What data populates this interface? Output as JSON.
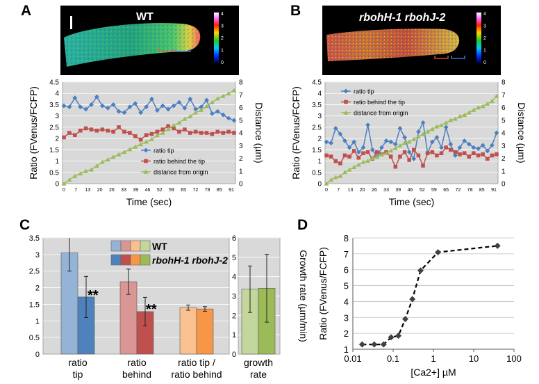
{
  "panels": {
    "A": {
      "letter": "A",
      "image_label": "WT",
      "colorbar_ticks": [
        "4",
        "3",
        "2",
        "1",
        "0"
      ]
    },
    "B": {
      "letter": "B",
      "image_label": "rbohH-1 rbohJ-2",
      "colorbar_ticks": [
        "4",
        "3",
        "2",
        "1",
        "0"
      ]
    },
    "C": {
      "letter": "C"
    },
    "D": {
      "letter": "D"
    }
  },
  "colors": {
    "ratio_tip": "#4a7fc1",
    "ratio_behind": "#c0504d",
    "distance": "#9bbb59",
    "plot_bg": "#d9d9d9",
    "c_wt_tip": "#95b3d7",
    "c_mut_tip": "#4f81bd",
    "c_wt_behind": "#d99694",
    "c_mut_behind": "#c0504d",
    "c_wt_ratio": "#fac090",
    "c_mut_ratio": "#f79646",
    "c_wt_growth": "#c3d69b",
    "c_mut_growth": "#9bbb59"
  },
  "chart_data": [
    {
      "id": "A",
      "type": "line",
      "title": "WT",
      "xlabel": "Time (sec)",
      "ylabel": "Ratio (FVenus/FCFP)",
      "y2label": "Distance (µm)",
      "ylim": [
        0,
        4.5
      ],
      "y2lim": [
        0,
        8
      ],
      "x_ticks": [
        0,
        7,
        13,
        20,
        26,
        33,
        39,
        46,
        52,
        59,
        65,
        72,
        78,
        85,
        91
      ],
      "y_ticks": [
        0,
        0.5,
        1,
        1.5,
        2,
        2.5,
        3,
        3.5,
        4,
        4.5
      ],
      "y_tick_labels": [
        "0",
        "0.5",
        "1",
        "1.5",
        "2",
        "2.5",
        "3",
        "3.5",
        "4",
        "4.5"
      ],
      "y2_ticks": [
        0,
        1,
        2,
        3,
        4,
        5,
        6,
        7,
        8
      ],
      "y2_tick_labels": [
        "0",
        "1",
        "2",
        "3",
        "4",
        "5",
        "6",
        "7",
        "8"
      ],
      "series": [
        {
          "name": "ratio tip",
          "axis": "left",
          "marker": "diamond",
          "values": [
            3.45,
            3.4,
            3.8,
            3.4,
            3.3,
            3.5,
            3.85,
            3.45,
            3.35,
            3.5,
            3.2,
            3.15,
            3.4,
            3.55,
            3.15,
            3.4,
            3.75,
            3.25,
            3.45,
            3.3,
            3.45,
            3.6,
            3.35,
            3.75,
            3.3,
            3.4,
            3.7,
            3.1,
            3.2,
            3.05,
            2.9,
            2.8
          ]
        },
        {
          "name": "ratio behind the tip",
          "axis": "left",
          "marker": "square",
          "values": [
            2.05,
            2.25,
            2.15,
            2.35,
            2.45,
            2.4,
            2.35,
            2.4,
            2.35,
            2.3,
            2.5,
            2.3,
            2.25,
            2.1,
            1.95,
            2.15,
            2.2,
            2.3,
            2.4,
            2.55,
            2.45,
            2.3,
            2.4,
            2.25,
            2.3,
            2.25,
            2.25,
            2.2,
            2.3,
            2.25,
            2.3,
            2.25
          ]
        },
        {
          "name": "distance from origin",
          "axis": "right",
          "marker": "triangle",
          "values": [
            0,
            0.3,
            0.6,
            0.8,
            1.0,
            1.1,
            1.4,
            1.7,
            1.9,
            2.1,
            2.3,
            2.5,
            2.7,
            2.9,
            3.1,
            3.3,
            3.5,
            3.8,
            4.0,
            4.3,
            4.6,
            4.8,
            5.1,
            5.3,
            5.6,
            5.8,
            6.1,
            6.4,
            6.7,
            6.9,
            7.1,
            7.35
          ]
        }
      ]
    },
    {
      "id": "B",
      "type": "line",
      "title": "rbohH-1 rbohJ-2",
      "xlabel": "Time (sec)",
      "ylabel": "Ratio (FVenus/FCFP)",
      "y2label": "Distance (µm)",
      "ylim": [
        0,
        4.5
      ],
      "y2lim": [
        0,
        8
      ],
      "x_ticks": [
        0,
        7,
        13,
        20,
        26,
        33,
        39,
        46,
        52,
        59,
        65,
        72,
        78,
        85,
        91
      ],
      "y_ticks": [
        0,
        0.5,
        1,
        1.5,
        2,
        2.5,
        3,
        3.5,
        4,
        4.5
      ],
      "y_tick_labels": [
        "0",
        "0.5",
        "1",
        "1.5",
        "2",
        "2.5",
        "3",
        "3.5",
        "4",
        "4.5"
      ],
      "y2_ticks": [
        0,
        1,
        2,
        3,
        4,
        5,
        6,
        7,
        8
      ],
      "y2_tick_labels": [
        "0",
        "1",
        "2",
        "3",
        "4",
        "5",
        "6",
        "7",
        "8"
      ],
      "series": [
        {
          "name": "ratio tip",
          "axis": "left",
          "marker": "diamond",
          "values": [
            1.85,
            1.8,
            2.45,
            2.2,
            1.9,
            1.6,
            1.85,
            1.4,
            1.6,
            2.6,
            1.5,
            1.2,
            1.6,
            1.9,
            1.85,
            1.75,
            2.45,
            2.05,
            1.4,
            1.1,
            2.3,
            2.7,
            1.35,
            1.85,
            2.05,
            1.6,
            2.5,
            1.75,
            1.25,
            1.6,
            1.9,
            1.75,
            1.6,
            1.55,
            1.7,
            1.45,
            1.7,
            2.25
          ]
        },
        {
          "name": "ratio behind the tip",
          "axis": "left",
          "marker": "square",
          "values": [
            1.25,
            1.2,
            1.0,
            0.9,
            1.25,
            1.2,
            1.45,
            1.15,
            1.35,
            1.4,
            1.1,
            1.4,
            1.3,
            1.4,
            1.2,
            0.75,
            1.2,
            1.4,
            1.05,
            1.5,
            1.25,
            0.8,
            1.35,
            1.4,
            1.25,
            1.35,
            1.6,
            1.5,
            1.4,
            1.3,
            1.35,
            1.2,
            1.35,
            1.25,
            1.3,
            1.1,
            1.25,
            1.3
          ]
        },
        {
          "name": "distance from origin",
          "axis": "right",
          "marker": "triangle",
          "values": [
            0,
            0.3,
            0.5,
            0.6,
            0.9,
            1.1,
            1.3,
            1.5,
            1.7,
            1.8,
            2.0,
            2.1,
            2.3,
            2.4,
            2.6,
            2.8,
            3.0,
            3.2,
            3.3,
            3.5,
            3.7,
            3.9,
            4.1,
            4.3,
            4.5,
            4.6,
            4.8,
            5.0,
            5.1,
            5.3,
            5.4,
            5.6,
            5.8,
            6.0,
            6.1,
            6.3,
            6.5,
            6.9
          ]
        }
      ]
    },
    {
      "id": "C",
      "type": "bar",
      "ylabel": "",
      "y2label": "Growth rate (µm/min)",
      "ylim": [
        0,
        3.5
      ],
      "y2lim": [
        0,
        6
      ],
      "y_ticks": [
        0,
        0.5,
        1,
        1.5,
        2,
        2.5,
        3,
        3.5
      ],
      "y_tick_labels": [
        "0",
        "0.5",
        "1",
        "1.5",
        "2",
        "2.5",
        "3",
        "3.5"
      ],
      "y2_ticks": [
        0,
        1,
        2,
        3,
        4,
        5,
        6
      ],
      "y2_tick_labels": [
        "0",
        "1",
        "2",
        "3",
        "4",
        "5",
        "6"
      ],
      "categories": [
        "ratio tip",
        "ratio behind",
        "ratio tip / ratio behind",
        "growth rate"
      ],
      "category_lines": [
        [
          "ratio",
          "tip"
        ],
        [
          "ratio",
          "behind"
        ],
        [
          "ratio tip /",
          "ratio behind"
        ],
        [
          "growth",
          "rate"
        ]
      ],
      "legend": [
        "WT",
        "rbohH-1 rbohJ-2"
      ],
      "series": [
        {
          "name": "WT",
          "values": [
            3.05,
            2.18,
            1.4,
            3.35
          ],
          "errors": [
            0.55,
            0.38,
            0.08,
            1.2
          ]
        },
        {
          "name": "rbohH-1 rbohJ-2",
          "values": [
            1.72,
            1.28,
            1.36,
            3.4
          ],
          "errors": [
            0.62,
            0.43,
            0.07,
            1.75
          ]
        }
      ],
      "significance": [
        "**",
        "**"
      ]
    },
    {
      "id": "D",
      "type": "scatter",
      "xscale": "log",
      "xlabel": "[Ca2+] µM",
      "ylabel": "Ratio (FVenus/FCFP)",
      "xlim": [
        0.01,
        100
      ],
      "ylim": [
        1,
        8
      ],
      "x_tick_labels": [
        "0.01",
        "0.1",
        "1",
        "10",
        "100"
      ],
      "y_ticks": [
        1,
        2,
        3,
        4,
        5,
        6,
        7,
        8
      ],
      "y_tick_labels": [
        "1",
        "2",
        "3",
        "4",
        "5",
        "6",
        "7",
        "8"
      ],
      "x": [
        0.017,
        0.034,
        0.058,
        0.089,
        0.135,
        0.2,
        0.3,
        0.48,
        1.3,
        39
      ],
      "y": [
        1.3,
        1.3,
        1.3,
        1.75,
        1.85,
        2.9,
        4.15,
        5.95,
        7.1,
        7.5
      ]
    }
  ]
}
